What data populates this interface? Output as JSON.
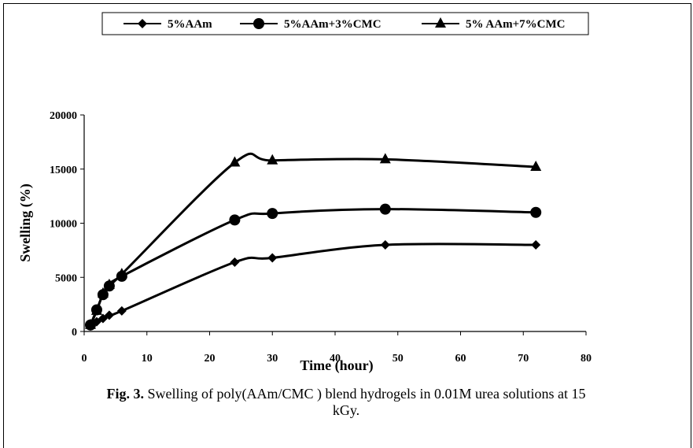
{
  "figure": {
    "caption_label": "Fig. 3.",
    "caption_text": " Swelling of poly(AAm/CMC ) blend hydrogels in 0.01M urea solutions at 15 kGy."
  },
  "chart_data": {
    "type": "line",
    "title": "",
    "xlabel": "Time (hour)",
    "ylabel": "Swelling (%)",
    "xlim": [
      0,
      80
    ],
    "ylim": [
      0,
      20000
    ],
    "xticks": [
      0,
      10,
      20,
      30,
      40,
      50,
      60,
      70,
      80
    ],
    "yticks": [
      0,
      5000,
      10000,
      15000,
      20000
    ],
    "grid": false,
    "legend_position": "top",
    "series": [
      {
        "name": "5%AAm",
        "marker": "diamond",
        "color": "#000000",
        "x": [
          1,
          2,
          3,
          4,
          6,
          24,
          30,
          48,
          72
        ],
        "y": [
          500,
          900,
          1200,
          1500,
          1900,
          6400,
          6800,
          8000,
          8000
        ]
      },
      {
        "name": "5%AAm+3%CMC",
        "marker": "circle",
        "color": "#000000",
        "x": [
          1,
          2,
          3,
          4,
          6,
          24,
          30,
          48,
          72
        ],
        "y": [
          600,
          2000,
          3400,
          4200,
          5100,
          10300,
          10900,
          11300,
          11000
        ]
      },
      {
        "name": "5% AAm+7%CMC",
        "marker": "triangle",
        "color": "#000000",
        "x": [
          1,
          2,
          3,
          4,
          6,
          24,
          30,
          48,
          72
        ],
        "y": [
          600,
          1900,
          3500,
          4300,
          5300,
          15600,
          15800,
          15900,
          15200
        ]
      }
    ]
  }
}
